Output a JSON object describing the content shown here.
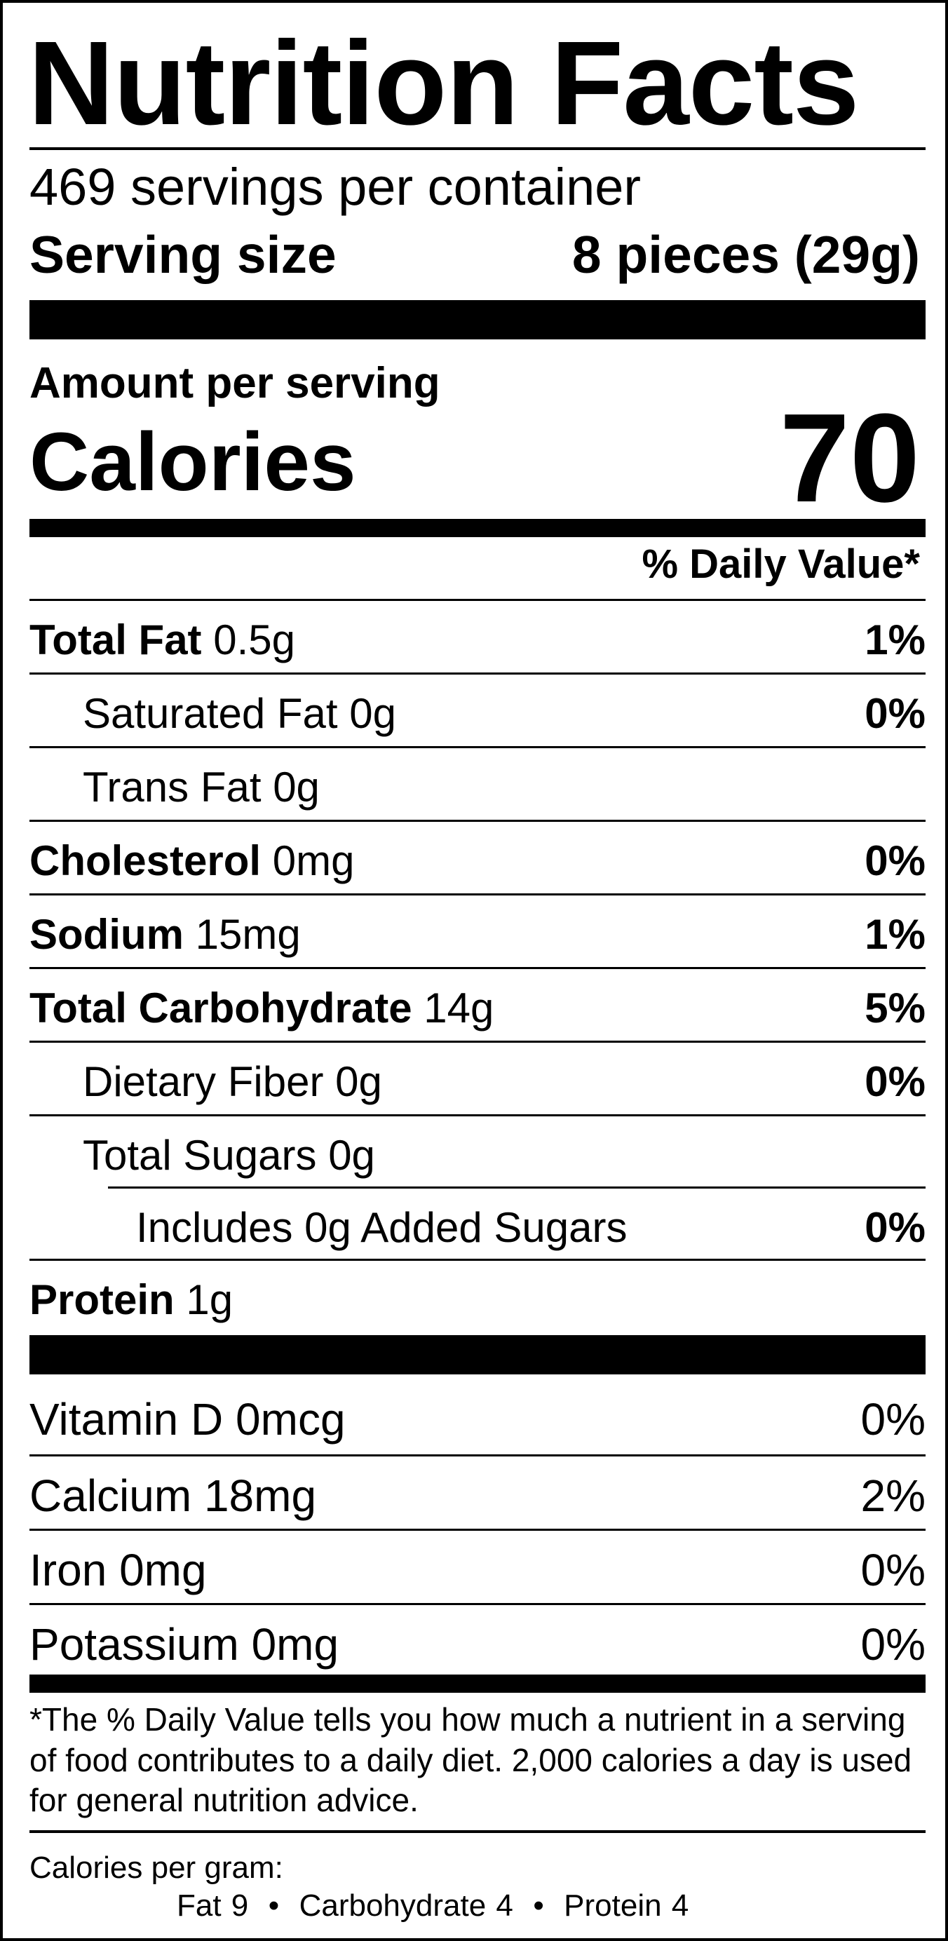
{
  "title": "Nutrition Facts",
  "servings_per_container": "469 servings per container",
  "serving_size": {
    "label": "Serving size",
    "value": "8 pieces (29g)"
  },
  "amount_per_serving": "Amount per serving",
  "calories": {
    "label": "Calories",
    "value": "70"
  },
  "daily_value_header": "% Daily Value*",
  "nutrients": [
    {
      "name": "Total Fat",
      "amount": "0.5g",
      "dv": "1%"
    },
    {
      "name": "Saturated Fat",
      "amount": "0g",
      "dv": "0%"
    },
    {
      "name": "Trans Fat",
      "amount": "0g",
      "dv": ""
    },
    {
      "name": "Cholesterol",
      "amount": "0mg",
      "dv": "0%"
    },
    {
      "name": "Sodium",
      "amount": "15mg",
      "dv": "1%"
    },
    {
      "name": "Total Carbohydrate",
      "amount": "14g",
      "dv": "5%"
    },
    {
      "name": "Dietary Fiber",
      "amount": "0g",
      "dv": "0%"
    },
    {
      "name": "Total Sugars",
      "amount": "0g",
      "dv": ""
    },
    {
      "name": "Includes 0g Added Sugars",
      "amount": "",
      "dv": "0%"
    },
    {
      "name": "Protein",
      "amount": "1g",
      "dv": ""
    }
  ],
  "vitamins": [
    {
      "label": "Vitamin D 0mcg",
      "dv": "0%"
    },
    {
      "label": "Calcium 18mg",
      "dv": "2%"
    },
    {
      "label": "Iron 0mg",
      "dv": "0%"
    },
    {
      "label": "Potassium 0mg",
      "dv": "0%"
    }
  ],
  "footnote": "*The % Daily Value tells you how much a nutrient in a serving of food contributes to a daily diet. 2,000 calories a day is used for general nutrition advice.",
  "calories_per_gram": {
    "label": "Calories per gram:",
    "values": "Fat 9  •  Carbohydrate 4  •  Protein 4"
  }
}
